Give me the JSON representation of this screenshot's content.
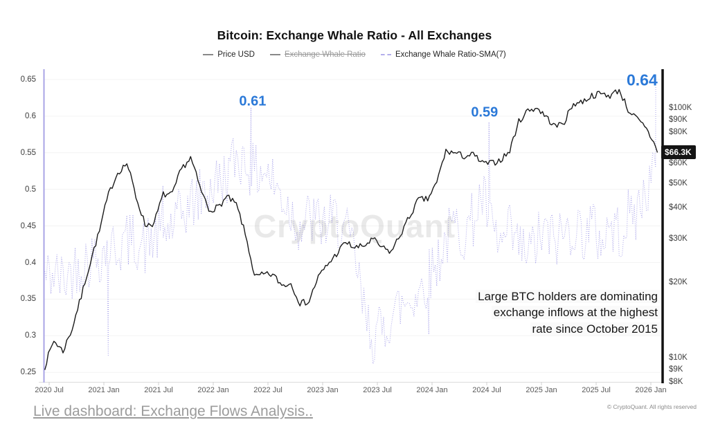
{
  "header": {
    "title": "Bitcoin: Exchange Whale Ratio - All Exchanges"
  },
  "legend": {
    "items": [
      {
        "label": "Price USD",
        "enabled": true,
        "marker": "solid-line",
        "marker_color": "#8a8a8a"
      },
      {
        "label": "Exchange Whale Ratio",
        "enabled": false,
        "marker": "solid-line",
        "marker_color": "#a8a8a8"
      },
      {
        "label": "Exchange Whale Ratio-SMA(7)",
        "enabled": true,
        "marker": "dashed-line",
        "marker_color": "#b3aeec"
      }
    ]
  },
  "chart": {
    "watermark": "CryptoQuant"
  },
  "annotation": {
    "lines": [
      "Large BTC holders are dominating",
      "exchange inflows at the highest",
      "rate since October 2015"
    ]
  },
  "footer": {
    "link_label": "Live dashboard: Exchange Flows Analysis..",
    "copyright": "© CryptoQuant. All rights reserved"
  },
  "chart_data": {
    "type": "line",
    "title": "Bitcoin: Exchange Whale Ratio - All Exchanges",
    "x_axis": {
      "ticks": [
        {
          "t": 2020.5,
          "label": "2020 Jul"
        },
        {
          "t": 2021.0,
          "label": "2021 Jan"
        },
        {
          "t": 2021.5,
          "label": "2021 Jul"
        },
        {
          "t": 2022.0,
          "label": "2022 Jan"
        },
        {
          "t": 2022.5,
          "label": "2022 Jul"
        },
        {
          "t": 2023.0,
          "label": "2023 Jan"
        },
        {
          "t": 2023.5,
          "label": "2023 Jul"
        },
        {
          "t": 2024.0,
          "label": "2024 Jan"
        },
        {
          "t": 2024.5,
          "label": "2024 Jul"
        },
        {
          "t": 2025.0,
          "label": "2025 Jan"
        },
        {
          "t": 2025.5,
          "label": "2025 Jul"
        },
        {
          "t": 2026.0,
          "label": "2026 Jan"
        }
      ]
    },
    "left_axis": {
      "range": [
        0.25,
        0.65
      ],
      "scale": "linear",
      "color": "#a9a4e6",
      "ticks": [
        {
          "v": 0.65,
          "label": "0.65"
        },
        {
          "v": 0.6,
          "label": "0.6"
        },
        {
          "v": 0.55,
          "label": "0.55"
        },
        {
          "v": 0.5,
          "label": "0.5"
        },
        {
          "v": 0.45,
          "label": "0.45"
        },
        {
          "v": 0.4,
          "label": "0.4"
        },
        {
          "v": 0.35,
          "label": "0.35"
        },
        {
          "v": 0.3,
          "label": "0.3"
        },
        {
          "v": 0.25,
          "label": "0.25"
        }
      ]
    },
    "right_axis": {
      "scale": "log",
      "unit": "USD (K)",
      "color": "#111111",
      "ticks": [
        {
          "v": 100,
          "label": "$100K"
        },
        {
          "v": 90,
          "label": "$90K"
        },
        {
          "v": 80,
          "label": "$80K"
        },
        {
          "v": 60,
          "label": "$60K"
        },
        {
          "v": 50,
          "label": "$50K"
        },
        {
          "v": 40,
          "label": "$40K"
        },
        {
          "v": 30,
          "label": "$30K"
        },
        {
          "v": 20,
          "label": "$20K"
        },
        {
          "v": 10,
          "label": "$10K"
        },
        {
          "v": 9,
          "label": "$9K"
        },
        {
          "v": 8,
          "label": "$8K"
        }
      ]
    },
    "grid_color": "#f3f3f3",
    "series": [
      {
        "name": "Exchange Whale Ratio-SMA(7)",
        "axis": "left",
        "color": "#a8a3ea",
        "style": "dotted",
        "t0": 2020.46,
        "dt_years": 0.0833333,
        "monthly_values": [
          0.38,
          0.385,
          0.375,
          0.39,
          0.4,
          0.405,
          0.41,
          0.42,
          0.42,
          0.43,
          0.43,
          0.42,
          0.435,
          0.44,
          0.45,
          0.465,
          0.48,
          0.49,
          0.5,
          0.51,
          0.52,
          0.545,
          0.54,
          0.52,
          0.53,
          0.51,
          0.49,
          0.47,
          0.45,
          0.46,
          0.455,
          0.45,
          0.46,
          0.44,
          0.41,
          0.33,
          0.3,
          0.305,
          0.33,
          0.34,
          0.35,
          0.36,
          0.38,
          0.4,
          0.43,
          0.45,
          0.44,
          0.46,
          0.49,
          0.445,
          0.42,
          0.44,
          0.42,
          0.41,
          0.43,
          0.44,
          0.43,
          0.44,
          0.45,
          0.44,
          0.45,
          0.43,
          0.45,
          0.44,
          0.46,
          0.47,
          0.5,
          0.53
        ],
        "key_points": [
          [
            2021.04,
            0.272
          ],
          [
            2021.54,
            0.505
          ],
          [
            2022.345,
            0.612
          ],
          [
            2023.97,
            0.302
          ],
          [
            2024.52,
            0.592
          ],
          [
            2026.045,
            0.641
          ]
        ],
        "noise": {
          "amplitude": 0.04,
          "substeps": 6,
          "seed": 42
        },
        "clamp": [
          0.252,
          0.645
        ]
      },
      {
        "name": "Price USD",
        "axis": "right",
        "color": "#1a1a1a",
        "style": "solid",
        "t0": 2020.46,
        "dt_years": 0.0833333,
        "monthly_values": [
          9.2,
          11.7,
          10.6,
          13.0,
          17.5,
          24.0,
          32,
          45,
          55,
          60,
          44,
          34,
          34.5,
          45,
          45,
          57,
          63,
          48,
          39,
          40,
          44,
          41,
          31,
          21,
          21.5,
          21.5,
          19.5,
          19.8,
          16.5,
          16.8,
          21,
          23.5,
          26,
          29,
          27.5,
          28,
          29.8,
          27.5,
          26.5,
          31,
          36.5,
          43,
          43,
          50,
          67,
          66,
          64,
          65,
          60,
          60,
          62,
          67,
          88,
          98,
          100,
          92,
          84,
          88,
          104,
          106,
          112,
          114,
          112,
          118,
          98,
          90,
          82,
          70
        ],
        "key_points": [
          [
            2026.06,
            66.3
          ]
        ],
        "noise": {
          "amplitude": 0.013,
          "substeps": 5,
          "seed": 7,
          "log": true
        }
      }
    ],
    "callouts": [
      {
        "text": "0.61",
        "t": 2022.36,
        "v": 0.62,
        "size": "md"
      },
      {
        "text": "0.59",
        "t": 2024.48,
        "v": 0.605,
        "size": "md"
      },
      {
        "text": "0.64",
        "t": 2025.92,
        "v": 0.649,
        "size": "lg"
      }
    ],
    "price_marker": {
      "label": "$66.3K",
      "value": 66.3
    },
    "accent_blue": "#2b79d8"
  }
}
